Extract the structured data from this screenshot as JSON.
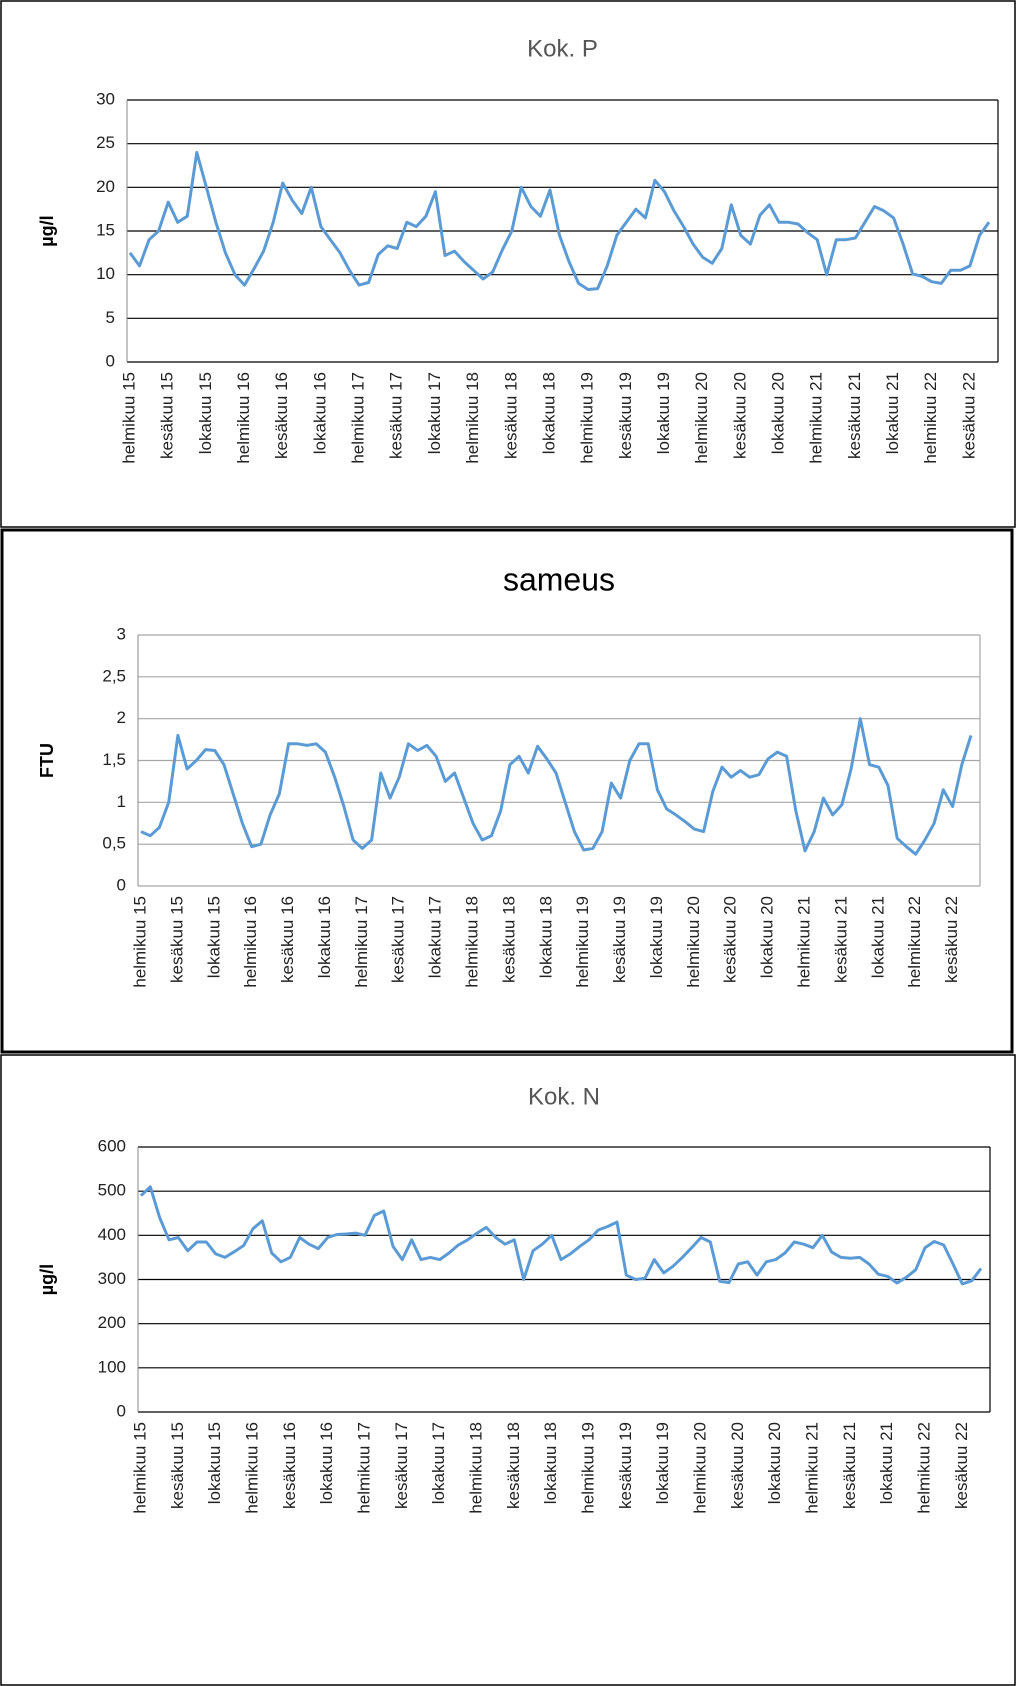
{
  "chart_data": [
    {
      "type": "line",
      "title": "Kok. P",
      "y_label": "µg/l",
      "color": "#5b9bd5",
      "grid": true,
      "grid_color": "#000000",
      "categories": [
        "helmikuu 15",
        null,
        null,
        null,
        "kesäkuu 15",
        null,
        null,
        null,
        "lokakuu 15",
        null,
        null,
        null,
        "helmikuu 16",
        null,
        null,
        null,
        "kesäkuu 16",
        null,
        null,
        null,
        "lokakuu 16",
        null,
        null,
        null,
        "helmikuu 17",
        null,
        null,
        null,
        "kesäkuu 17",
        null,
        null,
        null,
        "lokakuu 17",
        null,
        null,
        null,
        "helmikuu 18",
        null,
        null,
        null,
        "kesäkuu 18",
        null,
        null,
        null,
        "lokakuu 18",
        null,
        null,
        null,
        "helmikuu 19",
        null,
        null,
        null,
        "kesäkuu 19",
        null,
        null,
        null,
        "lokakuu 19",
        null,
        null,
        null,
        "helmikuu 20",
        null,
        null,
        null,
        "kesäkuu 20",
        null,
        null,
        null,
        "lokakuu 20",
        null,
        null,
        null,
        "helmikuu 21",
        null,
        null,
        null,
        "kesäkuu 21",
        null,
        null,
        null,
        "lokakuu 21",
        null,
        null,
        null,
        "helmikuu 22",
        null,
        null,
        null,
        "kesäkuu 22",
        null,
        null
      ],
      "values": [
        12.5,
        11,
        14,
        15,
        18.3,
        16,
        16.7,
        24,
        20,
        16,
        12.5,
        10,
        8.8,
        10.7,
        12.7,
        16,
        20.5,
        18.5,
        17,
        20,
        15.5,
        14,
        12.5,
        10.5,
        8.8,
        9.1,
        12.3,
        13.3,
        13,
        16,
        15.5,
        16.7,
        19.5,
        12.2,
        12.7,
        11.5,
        10.5,
        9.5,
        10.3,
        12.8,
        15,
        20,
        17.8,
        16.7,
        19.7,
        14.5,
        11.5,
        9,
        8.3,
        8.4,
        11,
        14.5,
        16,
        17.5,
        16.5,
        20.8,
        19.5,
        17.3,
        15.5,
        13.5,
        12,
        11.3,
        13,
        18,
        14.5,
        13.5,
        16.8,
        18,
        16,
        16,
        15.8,
        14.8,
        14,
        10,
        14,
        14,
        14.2,
        16,
        17.8,
        17.3,
        16.5,
        13.5,
        10.1,
        9.8,
        9.2,
        9,
        10.5,
        10.5,
        11,
        14.5,
        16
      ],
      "ylim": [
        0,
        30
      ],
      "yticks": [
        0,
        5,
        10,
        15,
        20,
        25,
        30
      ]
    },
    {
      "type": "line",
      "title": "sameus",
      "y_label": "FTU",
      "color": "#5b9bd5",
      "grid": true,
      "grid_color": "#a6a6a6",
      "categories": [
        "helmikuu 15",
        null,
        null,
        null,
        "kesäkuu 15",
        null,
        null,
        null,
        "lokakuu 15",
        null,
        null,
        null,
        "helmikuu 16",
        null,
        null,
        null,
        "kesäkuu 16",
        null,
        null,
        null,
        "lokakuu 16",
        null,
        null,
        null,
        "helmikuu 17",
        null,
        null,
        null,
        "kesäkuu 17",
        null,
        null,
        null,
        "lokakuu 17",
        null,
        null,
        null,
        "helmikuu 18",
        null,
        null,
        null,
        "kesäkuu 18",
        null,
        null,
        null,
        "lokakuu 18",
        null,
        null,
        null,
        "helmikuu 19",
        null,
        null,
        null,
        "kesäkuu 19",
        null,
        null,
        null,
        "lokakuu 19",
        null,
        null,
        null,
        "helmikuu 20",
        null,
        null,
        null,
        "kesäkuu 20",
        null,
        null,
        null,
        "lokakuu 20",
        null,
        null,
        null,
        "helmikuu 21",
        null,
        null,
        null,
        "kesäkuu 21",
        null,
        null,
        null,
        "lokakuu 21",
        null,
        null,
        null,
        "helmikuu 22",
        null,
        null,
        null,
        "kesäkuu 22",
        null,
        null
      ],
      "values": [
        0.65,
        0.6,
        0.7,
        1.0,
        1.8,
        1.4,
        1.5,
        1.63,
        1.62,
        1.45,
        1.1,
        0.75,
        0.47,
        0.5,
        0.85,
        1.1,
        1.7,
        1.7,
        1.68,
        1.7,
        1.6,
        1.3,
        0.95,
        0.55,
        0.45,
        0.55,
        1.35,
        1.05,
        1.3,
        1.7,
        1.62,
        1.68,
        1.55,
        1.25,
        1.35,
        1.05,
        0.75,
        0.55,
        0.6,
        0.9,
        1.45,
        1.55,
        1.35,
        1.67,
        1.52,
        1.35,
        1.0,
        0.65,
        0.43,
        0.45,
        0.65,
        1.23,
        1.05,
        1.5,
        1.7,
        1.7,
        1.15,
        0.92,
        0.85,
        0.77,
        0.68,
        0.65,
        1.13,
        1.42,
        1.3,
        1.38,
        1.3,
        1.33,
        1.52,
        1.6,
        1.55,
        0.9,
        0.42,
        0.65,
        1.05,
        0.85,
        0.97,
        1.4,
        2.0,
        1.45,
        1.42,
        1.2,
        0.57,
        0.47,
        0.38,
        0.55,
        0.75,
        1.15,
        0.95,
        1.45,
        1.8
      ],
      "ylim": [
        0,
        3
      ],
      "yticks": [
        0,
        {
          "value": 0.5,
          "label": "0,5"
        },
        1,
        {
          "value": 1.5,
          "label": "1,5"
        },
        2,
        {
          "value": 2.5,
          "label": "2,5"
        },
        3
      ]
    },
    {
      "type": "line",
      "title": "Kok. N",
      "y_label": "µg/l",
      "color": "#5b9bd5",
      "grid": true,
      "grid_color": "#000000",
      "categories": [
        "helmikuu 15",
        null,
        null,
        null,
        "kesäkuu 15",
        null,
        null,
        null,
        "lokakuu 15",
        null,
        null,
        null,
        "helmikuu 16",
        null,
        null,
        null,
        "kesäkuu 16",
        null,
        null,
        null,
        "lokakuu 16",
        null,
        null,
        null,
        "helmikuu 17",
        null,
        null,
        null,
        "kesäkuu 17",
        null,
        null,
        null,
        "lokakuu 17",
        null,
        null,
        null,
        "helmikuu 18",
        null,
        null,
        null,
        "kesäkuu 18",
        null,
        null,
        null,
        "lokakuu 18",
        null,
        null,
        null,
        "helmikuu 19",
        null,
        null,
        null,
        "kesäkuu 19",
        null,
        null,
        null,
        "lokakuu 19",
        null,
        null,
        null,
        "helmikuu 20",
        null,
        null,
        null,
        "kesäkuu 20",
        null,
        null,
        null,
        "lokakuu 20",
        null,
        null,
        null,
        "helmikuu 21",
        null,
        null,
        null,
        "kesäkuu 21",
        null,
        null,
        null,
        "lokakuu 21",
        null,
        null,
        null,
        "helmikuu 22",
        null,
        null,
        null,
        "kesäkuu 22",
        null,
        null
      ],
      "values": [
        490,
        510,
        440,
        390,
        395,
        365,
        385,
        385,
        358,
        350,
        363,
        377,
        415,
        433,
        360,
        340,
        350,
        395,
        380,
        370,
        395,
        402,
        403,
        405,
        400,
        445,
        455,
        375,
        345,
        390,
        345,
        350,
        345,
        360,
        378,
        390,
        405,
        418,
        395,
        380,
        390,
        300,
        365,
        380,
        400,
        345,
        358,
        375,
        390,
        412,
        420,
        430,
        310,
        300,
        303,
        345,
        315,
        330,
        350,
        372,
        395,
        385,
        296,
        293,
        335,
        340,
        310,
        340,
        345,
        360,
        385,
        380,
        372,
        400,
        362,
        350,
        348,
        350,
        335,
        312,
        307,
        292,
        305,
        322,
        372,
        386,
        378,
        335,
        290,
        297,
        325
      ],
      "ylim": [
        0,
        600
      ],
      "yticks": [
        0,
        100,
        200,
        300,
        400,
        500,
        600
      ]
    }
  ]
}
